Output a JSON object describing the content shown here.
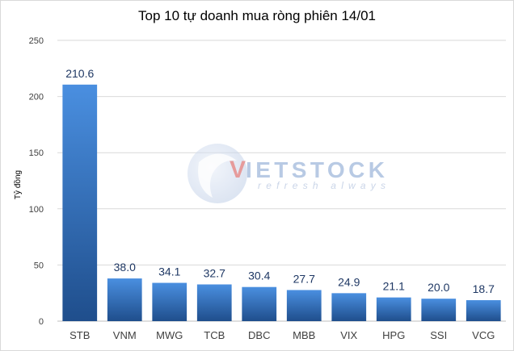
{
  "chart_data": {
    "type": "bar",
    "title": "Top 10 tự doanh mua ròng phiên 14/01",
    "xlabel": "",
    "ylabel": "Tỷ đồng",
    "categories": [
      "STB",
      "VNM",
      "MWG",
      "TCB",
      "DBC",
      "MBB",
      "VIX",
      "HPG",
      "SSI",
      "VCG"
    ],
    "values": [
      210.6,
      38.0,
      34.1,
      32.7,
      30.4,
      27.7,
      24.9,
      21.1,
      20.0,
      18.7
    ],
    "value_labels": [
      "210.6",
      "38.0",
      "34.1",
      "32.7",
      "30.4",
      "27.7",
      "24.9",
      "21.1",
      "20.0",
      "18.7"
    ],
    "ylim": [
      0,
      250
    ],
    "yticks": [
      0,
      50,
      100,
      150,
      200,
      250
    ],
    "grid": true,
    "legend": "none",
    "colors": {
      "bar_top": "#4a8fe0",
      "bar_bottom": "#1f4e8c",
      "grid": "#d9d9d9",
      "axis": "#bfbfbf"
    }
  },
  "watermark": {
    "brand": "IETSTOCK",
    "brand_prefix": "V",
    "tagline": "refresh always"
  }
}
